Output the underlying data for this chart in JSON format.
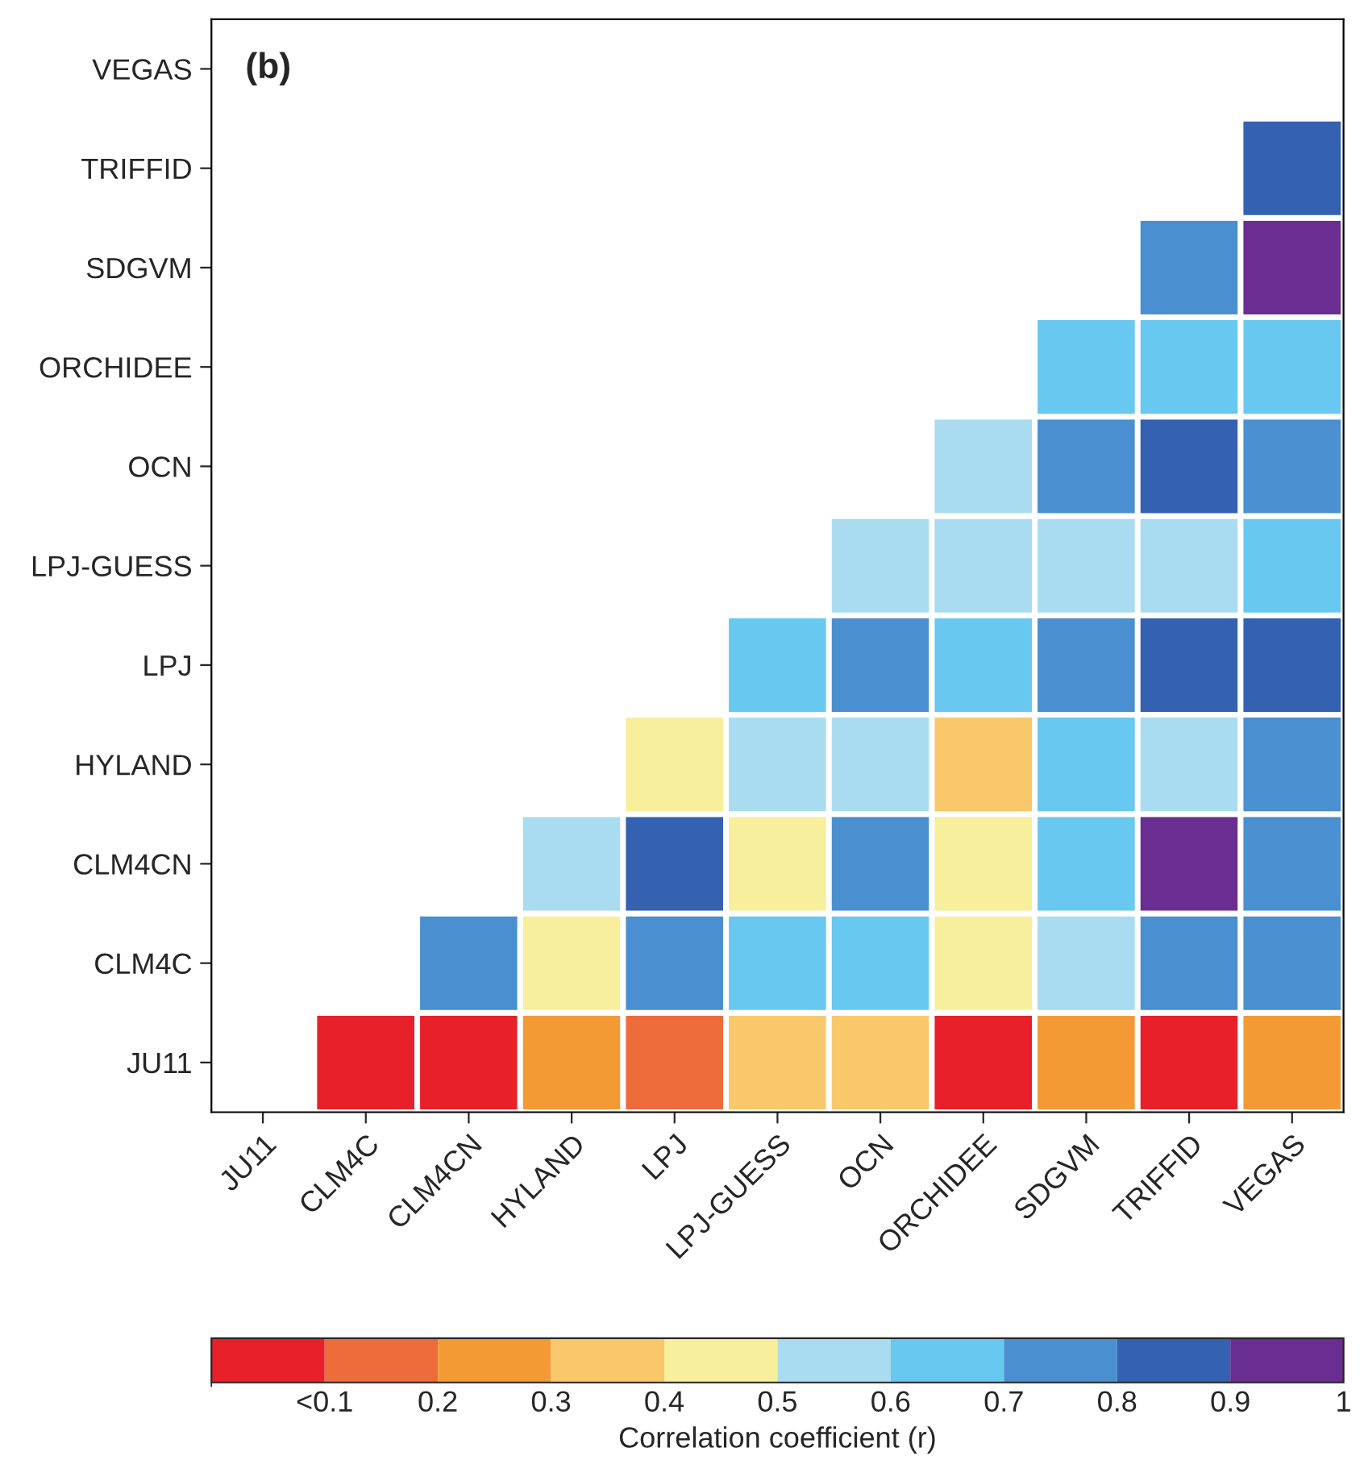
{
  "chart_data": {
    "type": "heatmap",
    "annotations": [
      "(b)"
    ],
    "categories": [
      "JU11",
      "CLM4C",
      "CLM4CN",
      "HYLAND",
      "LPJ",
      "LPJ-GUESS",
      "OCN",
      "ORCHIDEE",
      "SDGVM",
      "TRIFFID",
      "VEGAS"
    ],
    "y_categories": [
      "VEGAS",
      "TRIFFID",
      "SDGVM",
      "ORCHIDEE",
      "OCN",
      "LPJ-GUESS",
      "LPJ",
      "HYLAND",
      "CLM4CN",
      "CLM4C",
      "JU11"
    ],
    "cells": [
      [
        null,
        null,
        null,
        null,
        null,
        null,
        null,
        null,
        null,
        null,
        null
      ],
      [
        null,
        null,
        null,
        null,
        null,
        null,
        null,
        null,
        null,
        null,
        0.85
      ],
      [
        null,
        null,
        null,
        null,
        null,
        null,
        null,
        null,
        null,
        0.75,
        0.95
      ],
      [
        null,
        null,
        null,
        null,
        null,
        null,
        null,
        null,
        0.65,
        0.65,
        0.65
      ],
      [
        null,
        null,
        null,
        null,
        null,
        null,
        null,
        0.55,
        0.75,
        0.85,
        0.75
      ],
      [
        null,
        null,
        null,
        null,
        null,
        null,
        0.55,
        0.55,
        0.55,
        0.55,
        0.65
      ],
      [
        null,
        null,
        null,
        null,
        null,
        0.65,
        0.75,
        0.65,
        0.75,
        0.85,
        0.85
      ],
      [
        null,
        null,
        null,
        null,
        0.45,
        0.55,
        0.55,
        0.35,
        0.65,
        0.55,
        0.75
      ],
      [
        null,
        null,
        null,
        0.55,
        0.85,
        0.45,
        0.75,
        0.45,
        0.65,
        0.95,
        0.75
      ],
      [
        null,
        null,
        0.75,
        0.45,
        0.75,
        0.65,
        0.65,
        0.45,
        0.55,
        0.75,
        0.75
      ],
      [
        null,
        0.05,
        0.05,
        0.25,
        0.15,
        0.35,
        0.35,
        0.05,
        0.25,
        0.05,
        0.25
      ]
    ],
    "clabel": "Correlation coefficient (r)",
    "clim": [
      0,
      1
    ],
    "cticks": [
      {
        "value": 0.1,
        "label": "<0.1"
      },
      0.2,
      0.3,
      0.4,
      0.5,
      0.6,
      0.7,
      0.8,
      0.9,
      1
    ],
    "grid": false
  }
}
